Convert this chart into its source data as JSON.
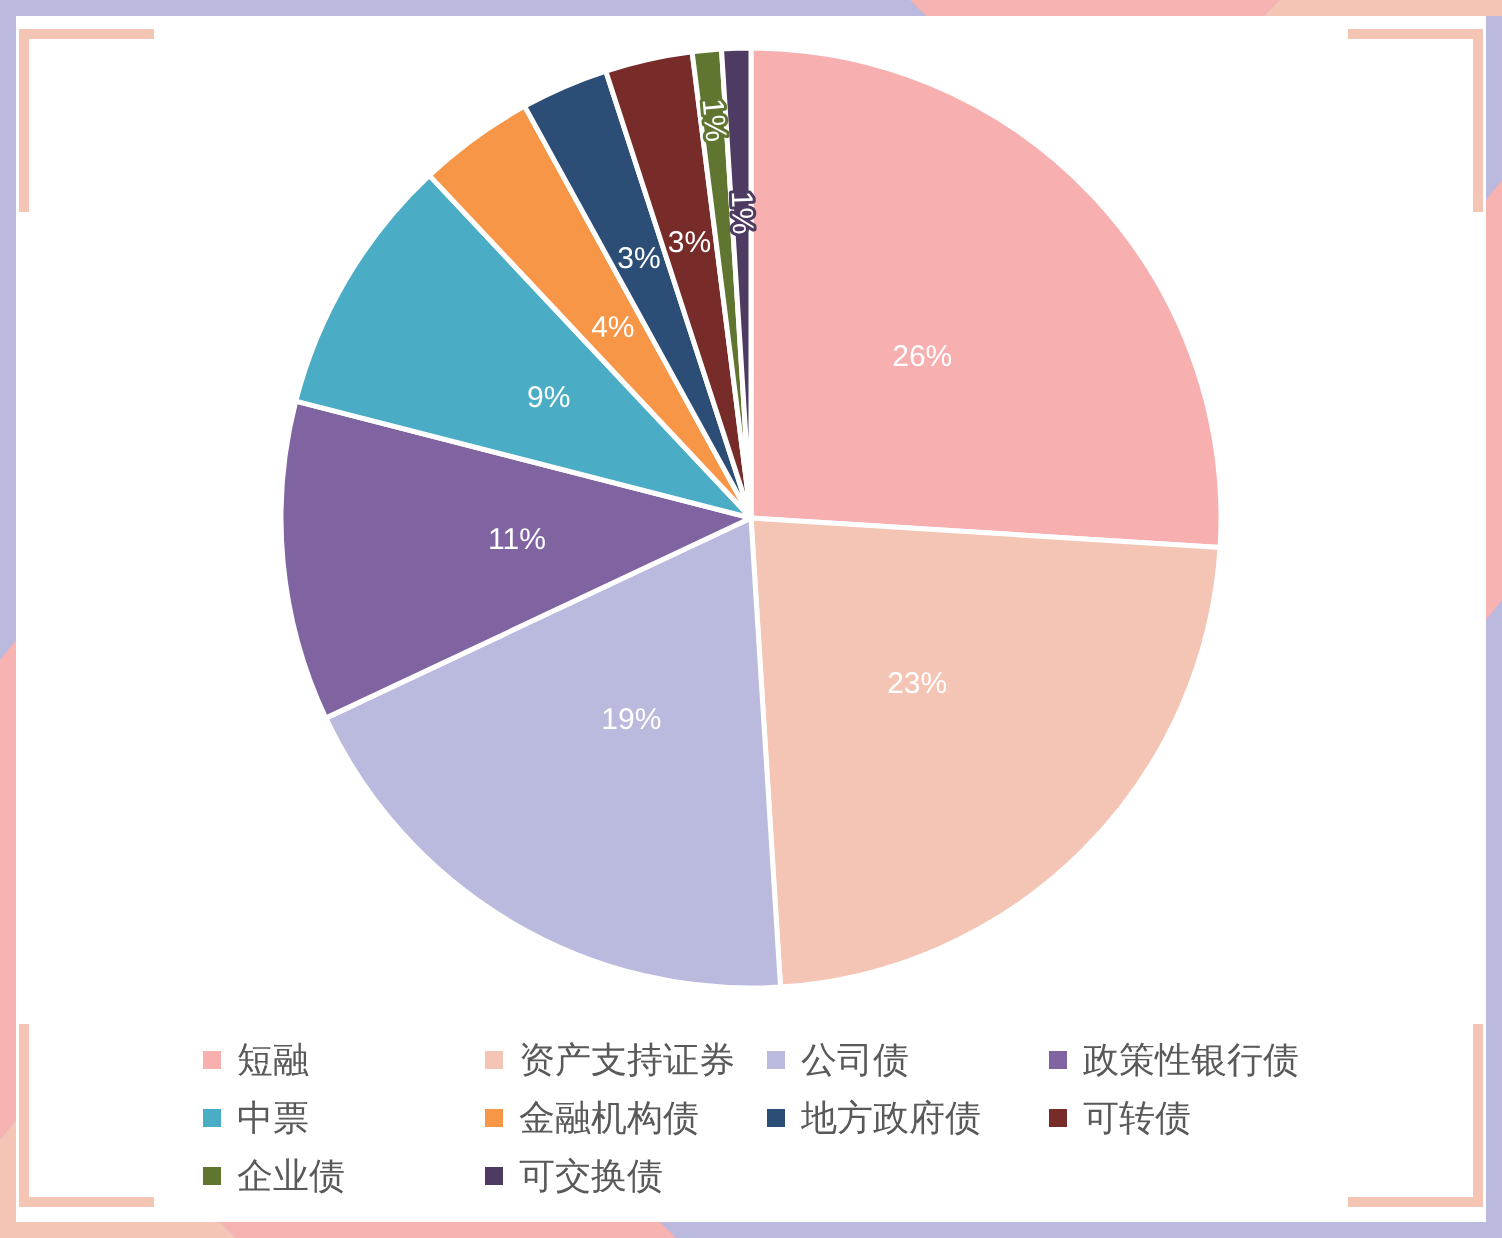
{
  "chart_data": {
    "type": "pie",
    "categories": [
      "短融",
      "资产支持证券",
      "公司债",
      "政策性银行债",
      "中票",
      "金融机构债",
      "地方政府债",
      "可转债",
      "企业债",
      "可交换债"
    ],
    "values": [
      26,
      23,
      19,
      11,
      9,
      4,
      3,
      3,
      1,
      1
    ],
    "colors": [
      "#f7afaf",
      "#f4c5b5",
      "#bab9de",
      "#8064a2",
      "#4bacc6",
      "#f79646",
      "#2c4d75",
      "#772c2a",
      "#5f7530",
      "#4d3b62"
    ],
    "value_labels": [
      "26%",
      "23%",
      "19%",
      "11%",
      "9%",
      "4%",
      "3%",
      "3%",
      "1%",
      "1%"
    ],
    "legend": "bottom"
  }
}
